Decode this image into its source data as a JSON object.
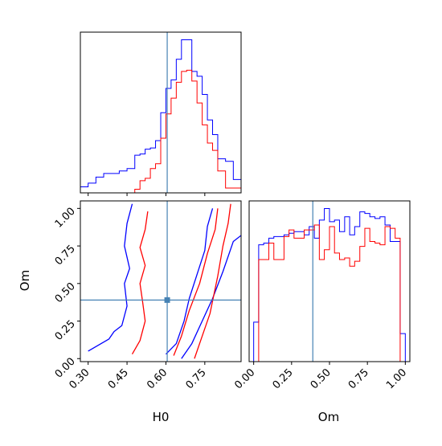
{
  "chart_data": [
    {
      "type": "histogram",
      "panel": "H0 marginal",
      "x_range": [
        0.27,
        0.89
      ],
      "x_ticks": [
        0.3,
        0.45,
        0.6,
        0.75
      ],
      "truth_line_x": 0.605,
      "bin_edges": [
        0.27,
        0.3,
        0.33,
        0.36,
        0.39,
        0.42,
        0.45,
        0.48,
        0.5,
        0.52,
        0.54,
        0.56,
        0.58,
        0.6,
        0.62,
        0.64,
        0.66,
        0.68,
        0.7,
        0.72,
        0.74,
        0.76,
        0.78,
        0.8,
        0.83,
        0.86,
        0.89
      ],
      "series": [
        {
          "color": "#0000ff",
          "values": [
            0.5,
            0.8,
            1.3,
            1.6,
            1.6,
            1.8,
            2.0,
            3.1,
            3.2,
            3.6,
            3.7,
            4.3,
            6.6,
            8.6,
            9.3,
            11.0,
            12.6,
            12.6,
            10.0,
            9.6,
            8.1,
            6.0,
            4.8,
            2.8,
            2.6,
            1.1
          ]
        },
        {
          "color": "#ff0000",
          "values": [
            0.0,
            0.0,
            0.0,
            0.0,
            0.0,
            0.0,
            0.0,
            0.3,
            1.0,
            1.2,
            2.0,
            2.4,
            4.5,
            6.5,
            7.8,
            9.1,
            10.0,
            10.1,
            9.2,
            7.4,
            5.6,
            4.1,
            3.5,
            1.8,
            0.4,
            0.4
          ]
        }
      ]
    },
    {
      "type": "histogram",
      "panel": "Om marginal",
      "x_range": [
        -0.03,
        1.03
      ],
      "x_ticks": [
        "0.00",
        "0.25",
        "0.50",
        "0.75",
        "1.00"
      ],
      "xlabel": "Om",
      "truth_line_x": 0.39,
      "bin_edges": [
        0.0,
        0.033,
        0.066,
        0.1,
        0.133,
        0.166,
        0.2,
        0.233,
        0.266,
        0.3,
        0.333,
        0.366,
        0.4,
        0.433,
        0.466,
        0.5,
        0.533,
        0.566,
        0.6,
        0.633,
        0.666,
        0.7,
        0.733,
        0.766,
        0.8,
        0.833,
        0.866,
        0.9,
        0.933,
        0.966,
        1.0
      ],
      "series": [
        {
          "color": "#0000ff",
          "values": [
            2.4,
            7.1,
            7.2,
            7.5,
            7.6,
            7.6,
            7.7,
            7.8,
            7.9,
            7.9,
            7.7,
            8.2,
            7.5,
            8.6,
            9.3,
            8.5,
            8.6,
            7.9,
            8.8,
            7.7,
            8.2,
            9.1,
            9.0,
            8.8,
            8.7,
            8.8,
            8.3,
            7.3,
            7.3,
            1.7
          ]
        },
        {
          "color": "#ff0000",
          "values": [
            0.0,
            6.2,
            6.2,
            7.2,
            6.2,
            6.2,
            7.6,
            8.0,
            7.5,
            7.5,
            8.0,
            8.0,
            8.3,
            6.2,
            6.8,
            8.2,
            6.6,
            6.2,
            6.3,
            5.8,
            6.1,
            7.0,
            8.1,
            7.3,
            7.2,
            7.1,
            8.2,
            8.1,
            7.5,
            0.0
          ]
        }
      ]
    },
    {
      "type": "contour",
      "panel": "H0 vs Om 2D",
      "x_range": [
        0.27,
        0.89
      ],
      "y_range": [
        -0.02,
        1.05
      ],
      "x_ticks": [
        "0.30",
        "0.45",
        "0.60",
        "0.75"
      ],
      "y_ticks": [
        "0.00",
        "0.25",
        "0.50",
        "0.75",
        "1.00"
      ],
      "xlabel": "H0",
      "ylabel": "Om",
      "truth_point": [
        0.605,
        0.39
      ],
      "series": [
        {
          "color": "#0000ff",
          "level": "outer",
          "polyline": [
            [
              0.3,
              0.05
            ],
            [
              0.35,
              0.1
            ],
            [
              0.38,
              0.13
            ],
            [
              0.4,
              0.18
            ],
            [
              0.43,
              0.22
            ],
            [
              0.45,
              0.35
            ],
            [
              0.44,
              0.5
            ],
            [
              0.46,
              0.6
            ],
            [
              0.44,
              0.75
            ],
            [
              0.45,
              0.9
            ],
            [
              0.47,
              1.03
            ]
          ]
        },
        {
          "color": "#0000ff",
          "level": "outer-right",
          "polyline": [
            [
              0.66,
              0.0
            ],
            [
              0.7,
              0.1
            ],
            [
              0.74,
              0.25
            ],
            [
              0.78,
              0.4
            ],
            [
              0.82,
              0.58
            ],
            [
              0.86,
              0.78
            ],
            [
              0.89,
              0.82
            ]
          ]
        },
        {
          "color": "#0000ff",
          "level": "inner",
          "polyline": [
            [
              0.6,
              0.03
            ],
            [
              0.64,
              0.1
            ],
            [
              0.67,
              0.25
            ],
            [
              0.69,
              0.4
            ],
            [
              0.72,
              0.56
            ],
            [
              0.75,
              0.72
            ],
            [
              0.76,
              0.88
            ],
            [
              0.78,
              1.0
            ]
          ]
        },
        {
          "color": "#ff0000",
          "level": "outer",
          "polyline": [
            [
              0.47,
              0.03
            ],
            [
              0.5,
              0.12
            ],
            [
              0.52,
              0.25
            ],
            [
              0.51,
              0.38
            ],
            [
              0.5,
              0.5
            ],
            [
              0.52,
              0.62
            ],
            [
              0.5,
              0.74
            ],
            [
              0.52,
              0.86
            ],
            [
              0.53,
              0.98
            ]
          ]
        },
        {
          "color": "#ff0000",
          "level": "outer-right",
          "polyline": [
            [
              0.71,
              0.0
            ],
            [
              0.74,
              0.15
            ],
            [
              0.77,
              0.3
            ],
            [
              0.8,
              0.55
            ],
            [
              0.82,
              0.75
            ],
            [
              0.84,
              0.9
            ],
            [
              0.85,
              1.03
            ]
          ]
        },
        {
          "color": "#ff0000",
          "level": "inner",
          "polyline": [
            [
              0.63,
              0.02
            ],
            [
              0.66,
              0.15
            ],
            [
              0.69,
              0.32
            ],
            [
              0.73,
              0.5
            ],
            [
              0.76,
              0.7
            ],
            [
              0.79,
              0.86
            ],
            [
              0.8,
              1.0
            ]
          ]
        }
      ]
    }
  ]
}
